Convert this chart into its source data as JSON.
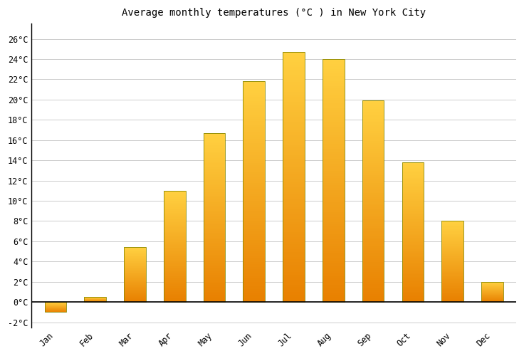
{
  "title": "Average monthly temperatures (°C ) in New York City",
  "months": [
    "Jan",
    "Feb",
    "Mar",
    "Apr",
    "May",
    "Jun",
    "Jul",
    "Aug",
    "Sep",
    "Oct",
    "Nov",
    "Dec"
  ],
  "temperatures": [
    -1.0,
    0.5,
    5.4,
    11.0,
    16.7,
    21.8,
    24.7,
    24.0,
    19.9,
    13.8,
    8.0,
    2.0
  ],
  "bar_color_top": "#FFD040",
  "bar_color_bottom": "#E88000",
  "bar_edge_color": "#888800",
  "background_color": "#ffffff",
  "grid_color": "#cccccc",
  "ytick_labels": [
    "-2°C",
    "0°C",
    "2°C",
    "4°C",
    "6°C",
    "8°C",
    "10°C",
    "12°C",
    "14°C",
    "16°C",
    "18°C",
    "20°C",
    "22°C",
    "24°C",
    "26°C"
  ],
  "ytick_values": [
    -2,
    0,
    2,
    4,
    6,
    8,
    10,
    12,
    14,
    16,
    18,
    20,
    22,
    24,
    26
  ],
  "ylim": [
    -2.5,
    27.5
  ],
  "title_fontsize": 10,
  "tick_fontsize": 8.5,
  "font_family": "monospace",
  "bar_width": 0.55
}
